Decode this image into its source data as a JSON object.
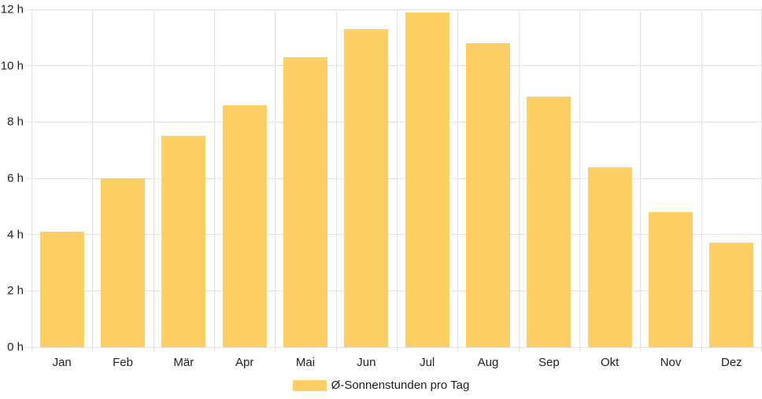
{
  "chart_data": {
    "type": "bar",
    "categories": [
      "Jan",
      "Feb",
      "Mär",
      "Apr",
      "Mai",
      "Jun",
      "Jul",
      "Aug",
      "Sep",
      "Okt",
      "Nov",
      "Dez"
    ],
    "values": [
      4.1,
      6.0,
      7.5,
      8.6,
      10.3,
      11.3,
      11.9,
      10.8,
      8.9,
      6.4,
      4.8,
      3.7
    ],
    "series": [
      {
        "name": "Ø-Sonnenstunden pro Tag",
        "values": [
          4.1,
          6.0,
          7.5,
          8.6,
          10.3,
          11.3,
          11.9,
          10.8,
          8.9,
          6.4,
          4.8,
          3.7
        ]
      }
    ],
    "title": "",
    "xlabel": "",
    "ylabel": "",
    "y_unit": "h",
    "y_ticks": [
      "0 h",
      "2 h",
      "4 h",
      "6 h",
      "8 h",
      "10 h",
      "12 h"
    ],
    "y_tick_step": 2,
    "ylim": [
      0,
      12
    ],
    "grid": true,
    "legend_position": "bottom-center",
    "colors": {
      "bar": "#FCCE64",
      "grid": "#E2E2E2",
      "axis_text": "#1F1F1F",
      "background": "#FFFFFF"
    }
  },
  "legend": {
    "label": "Ø-Sonnenstunden pro Tag"
  }
}
